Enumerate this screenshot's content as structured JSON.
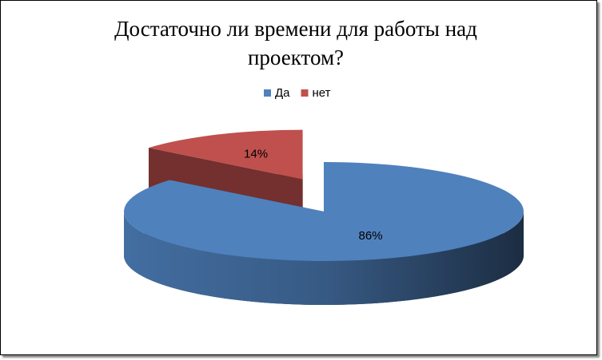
{
  "chart_data": {
    "type": "pie",
    "title": "Достаточно ли времени для работы над проектом?",
    "categories": [
      "Да",
      "нет"
    ],
    "values": [
      86,
      14
    ],
    "value_labels": [
      "86%",
      "14%"
    ],
    "colors": [
      "#4F81BD",
      "#C0504D"
    ],
    "legend": "top"
  }
}
